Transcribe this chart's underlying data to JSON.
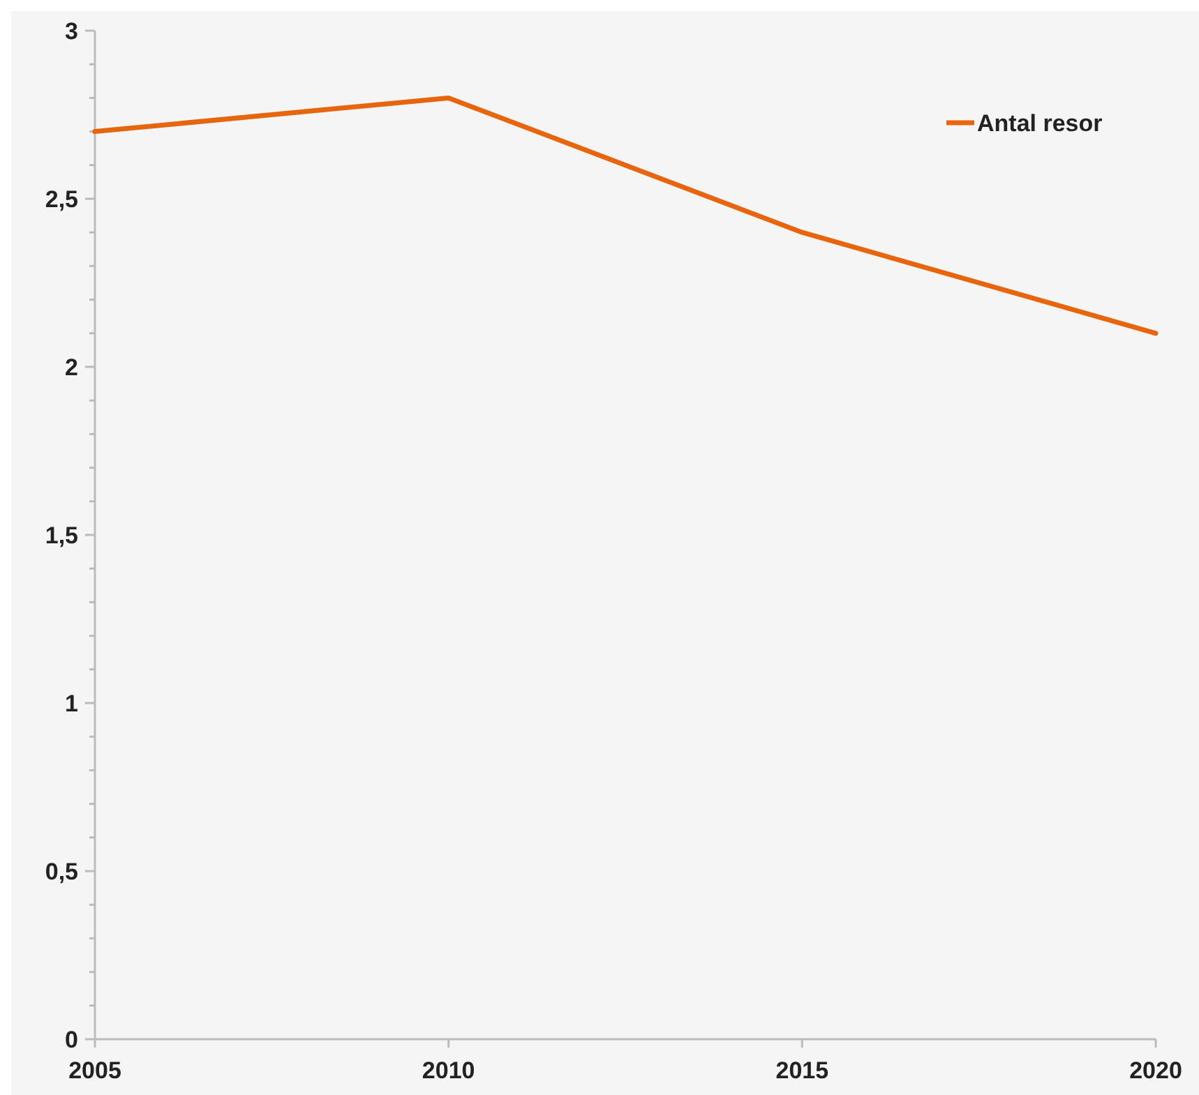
{
  "chart_data": {
    "type": "line",
    "x": [
      2005,
      2010,
      2015,
      2020
    ],
    "series": [
      {
        "name": "Antal resor",
        "color": "#e8650f",
        "values": [
          2.7,
          2.8,
          2.4,
          2.1
        ]
      }
    ],
    "xlim": [
      2005,
      2020
    ],
    "xticks": [
      2005,
      2010,
      2015,
      2020
    ],
    "ylim": [
      0,
      3
    ],
    "yticks": [
      0,
      {
        "value": 0.1,
        "label": null
      },
      {
        "value": 0.2,
        "label": null
      },
      {
        "value": 0.3,
        "label": null
      },
      {
        "value": 0.4,
        "label": null
      },
      {
        "value": 0.5,
        "label": "0,5"
      },
      {
        "value": 0.6,
        "label": null
      },
      {
        "value": 0.7,
        "label": null
      },
      {
        "value": 0.8,
        "label": null
      },
      {
        "value": 0.9,
        "label": null
      },
      1,
      {
        "value": 1.1,
        "label": null
      },
      {
        "value": 1.2,
        "label": null
      },
      {
        "value": 1.3,
        "label": null
      },
      {
        "value": 1.4,
        "label": null
      },
      {
        "value": 1.5,
        "label": "1,5"
      },
      {
        "value": 1.6,
        "label": null
      },
      {
        "value": 1.7,
        "label": null
      },
      {
        "value": 1.8,
        "label": null
      },
      {
        "value": 1.9,
        "label": null
      },
      2,
      {
        "value": 2.1,
        "label": null
      },
      {
        "value": 2.2,
        "label": null
      },
      {
        "value": 2.3,
        "label": null
      },
      {
        "value": 2.4,
        "label": null
      },
      {
        "value": 2.5,
        "label": "2,5"
      },
      {
        "value": 2.6,
        "label": null
      },
      {
        "value": 2.7,
        "label": null
      },
      {
        "value": 2.8,
        "label": null
      },
      {
        "value": 2.9,
        "label": null
      },
      3
    ],
    "legend": "top right",
    "grid": false,
    "marker": "none",
    "line_style": "solid"
  }
}
